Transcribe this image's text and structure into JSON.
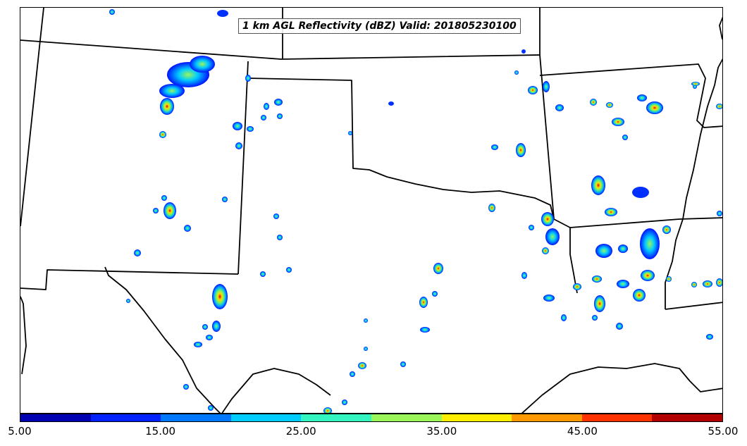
{
  "title": "1 km AGL Reflectivity (dBZ) Valid: 201805230100",
  "colorbar": {
    "colors": [
      "#0000b3",
      "#0022ff",
      "#0077ff",
      "#00ccff",
      "#33f5c0",
      "#99f55a",
      "#ffee00",
      "#ff9900",
      "#ff3300",
      "#b30000"
    ],
    "tick_labels": [
      "5.00",
      "15.00",
      "25.00",
      "35.00",
      "45.00",
      "55.00"
    ],
    "range": [
      5,
      55
    ]
  }
}
